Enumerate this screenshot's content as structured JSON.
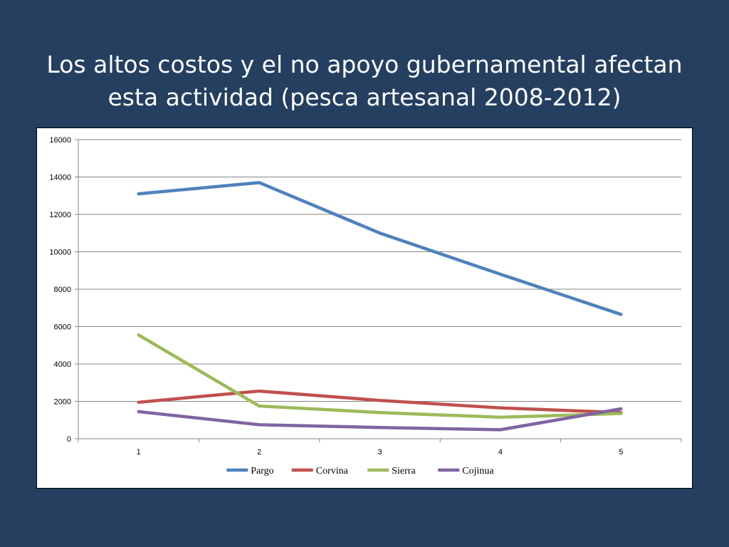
{
  "slide": {
    "title_line1": "Los altos costos y el no apoyo gubernamental afectan",
    "title_line2": "esta actividad (pesca artesanal 2008-2012)",
    "background_color": "#243F60",
    "title_color": "#FFFFFF"
  },
  "chart_data": {
    "type": "line",
    "title": "",
    "xlabel": "",
    "ylabel": "",
    "x": [
      1,
      2,
      3,
      4,
      5
    ],
    "x_tick_labels": [
      "1",
      "2",
      "3",
      "4",
      "5"
    ],
    "ylim": [
      0,
      16000
    ],
    "y_ticks": [
      0,
      2000,
      4000,
      6000,
      8000,
      10000,
      12000,
      14000,
      16000
    ],
    "y_tick_labels": [
      "0",
      "2000",
      "4000",
      "6000",
      "8000",
      "10000",
      "12000",
      "14000",
      "16000"
    ],
    "grid": "horizontal",
    "legend_position": "bottom",
    "series": [
      {
        "name": "Pargo",
        "color": "#4F81BD",
        "values": [
          13100,
          13700,
          11000,
          8800,
          6650
        ]
      },
      {
        "name": "Corvina",
        "color": "#C0504D",
        "values": [
          1950,
          2550,
          2050,
          1650,
          1400
        ]
      },
      {
        "name": "Sierra",
        "color": "#9BBB59",
        "values": [
          5550,
          1750,
          1400,
          1150,
          1350
        ]
      },
      {
        "name": "Cojinua",
        "color": "#8064A2",
        "values": [
          1450,
          750,
          600,
          480,
          1600
        ]
      }
    ]
  }
}
